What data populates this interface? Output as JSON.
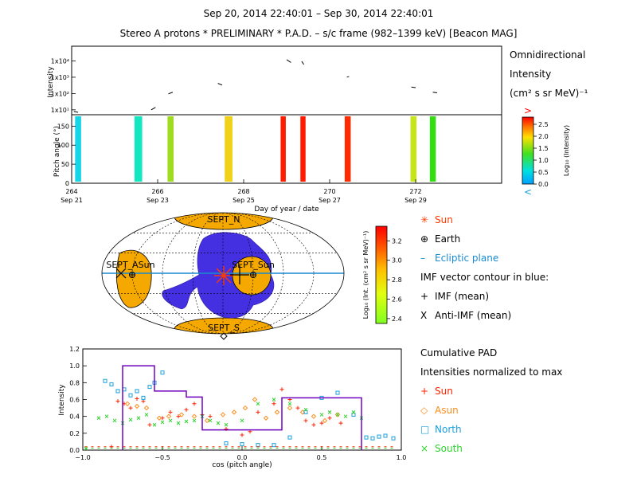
{
  "header": {
    "date_range": "Sep 20, 2014 22:40:01 – Sep 30, 2014 22:40:01",
    "subtitle": "Stereo A protons * PRELIMINARY * P.A.D. – s/c frame (982–1399 keV)  [Beacon MAG]"
  },
  "colors": {
    "orange": "#f5a800",
    "blue_contour": "#3a2bd8",
    "ecliptic": "#1a8ad0",
    "sun": "#ff3a00",
    "north": "#1aa0e0",
    "south": "#2fd32f",
    "cumulative": "#ff0000",
    "asun": "#ff8c1a",
    "outline": "#7000c0"
  },
  "intensity_panel": {
    "ylabel": "Intensity",
    "ytick_labels": [
      "1x10¹",
      "1x10²",
      "1x10³",
      "1x10⁴"
    ],
    "legend_lines": [
      "Omnidirectional",
      "Intensity",
      "(cm² s sr MeV)⁻¹"
    ],
    "segments": [
      {
        "x": [
          264.05,
          264.15
        ],
        "y": [
          8,
          7
        ]
      },
      {
        "x": [
          265.85,
          265.95
        ],
        "y": [
          10,
          14
        ]
      },
      {
        "x": [
          266.25,
          266.35
        ],
        "y": [
          95,
          120
        ]
      },
      {
        "x": [
          267.4,
          267.5
        ],
        "y": [
          420,
          330
        ]
      },
      {
        "x": [
          269.0,
          269.1
        ],
        "y": [
          12000,
          8000
        ]
      },
      {
        "x": [
          269.35,
          269.4
        ],
        "y": [
          9500,
          6000
        ]
      },
      {
        "x": [
          270.4,
          270.45
        ],
        "y": [
          1000,
          1100
        ]
      },
      {
        "x": [
          271.9,
          272.0
        ],
        "y": [
          250,
          230
        ]
      },
      {
        "x": [
          272.4,
          272.5
        ],
        "y": [
          120,
          110
        ]
      }
    ],
    "xlim": [
      264,
      274
    ],
    "ylim": [
      5,
      80000
    ],
    "log_y": true
  },
  "pitch_panel": {
    "ylabel": "Pitch angle (°)",
    "ytick_labels": [
      "0",
      "50",
      "100",
      "150"
    ],
    "xlabel": "Day of year / date",
    "xtick_days": [
      "264",
      "266",
      "268",
      "270",
      "272"
    ],
    "xtick_dates": [
      "Sep 21",
      "Sep 23",
      "Sep 25",
      "Sep 27",
      "Sep 29"
    ],
    "colorbar": {
      "label": "Log₁₀ (Intensity)",
      "tick_labels": [
        "0.0",
        "0.5",
        "1.0",
        "1.5",
        "2.0",
        "2.5"
      ],
      "over_mark": ">",
      "under_mark": "<",
      "range": [
        0.0,
        2.8
      ]
    },
    "bars": [
      {
        "day": 264.15,
        "width": 0.14,
        "color": "#14d6e6"
      },
      {
        "day": 265.55,
        "width": 0.18,
        "color": "#14e6c0"
      },
      {
        "day": 266.3,
        "width": 0.14,
        "color": "#9fdc20"
      },
      {
        "day": 267.65,
        "width": 0.18,
        "color": "#f0d21a"
      },
      {
        "day": 268.92,
        "width": 0.12,
        "color": "#ff1a00"
      },
      {
        "day": 269.38,
        "width": 0.12,
        "color": "#ff1a00"
      },
      {
        "day": 270.42,
        "width": 0.14,
        "color": "#ff2a00"
      },
      {
        "day": 271.95,
        "width": 0.14,
        "color": "#c7e61a"
      },
      {
        "day": 272.4,
        "width": 0.14,
        "color": "#33dd11"
      }
    ],
    "xlim": [
      264,
      274
    ],
    "ylim": [
      0,
      180
    ]
  },
  "sky_map": {
    "labels": {
      "north": "SEPT_N",
      "south": "SEPT_S",
      "asun": "SEPT_ASun",
      "sun": "SEPT_Sun"
    },
    "colorbar": {
      "label": "Log₁₀ (Int. (cm² s sr MeV)⁻¹)",
      "tick_labels": [
        "2.4",
        "2.6",
        "2.8",
        "3.0",
        "3.2"
      ],
      "range": [
        2.35,
        3.35
      ]
    },
    "legend": [
      {
        "symbol": "✳",
        "text": "Sun",
        "color": "#ff3a00"
      },
      {
        "symbol": "⊕",
        "text": "Earth",
        "color": "#000000"
      },
      {
        "symbol": "–",
        "text": "Ecliptic plane",
        "color": "#1a8ad0"
      },
      {
        "symbol": "",
        "text": "IMF vector contour in blue:",
        "color": "#000000"
      },
      {
        "symbol": "+",
        "text": "IMF (mean)",
        "color": "#000000"
      },
      {
        "symbol": "X",
        "text": "Anti-IMF (mean)",
        "color": "#000000"
      }
    ]
  },
  "chart_data": {
    "type": "scatter",
    "xlabel": "cos (pitch angle)",
    "ylabel": "Intensity",
    "xlim": [
      -1.0,
      1.0
    ],
    "ylim": [
      0.0,
      1.2
    ],
    "xtick_labels": [
      "−1.0",
      "−0.5",
      "0.0",
      "0.5",
      "1.0"
    ],
    "ytick_labels": [
      "0.0",
      "0.2",
      "0.4",
      "0.6",
      "0.8",
      "1.0",
      "1.2"
    ],
    "title": "Cumulative PAD",
    "subtitle": "Intensities normalized to max",
    "series": [
      {
        "name": "Sun",
        "marker": "+",
        "color": "#ff2200",
        "x": [
          -0.82,
          -0.78,
          -0.74,
          -0.7,
          -0.66,
          -0.62,
          -0.58,
          -0.5,
          -0.45,
          -0.4,
          -0.35,
          -0.3,
          -0.25,
          -0.2,
          -0.1,
          0.0,
          0.05,
          0.1,
          0.2,
          0.25,
          0.3,
          0.35,
          0.4,
          0.45,
          0.5,
          0.55,
          0.62
        ],
        "y": [
          0.04,
          0.58,
          0.55,
          0.5,
          0.61,
          0.58,
          0.3,
          0.38,
          0.45,
          0.4,
          0.48,
          0.55,
          0.42,
          0.4,
          0.25,
          0.18,
          0.22,
          0.45,
          0.55,
          0.72,
          0.6,
          0.5,
          0.35,
          0.3,
          0.32,
          0.38,
          0.32
        ]
      },
      {
        "name": "Asun",
        "marker": "◇",
        "color": "#ff8c1a",
        "x": [
          -0.72,
          -0.66,
          -0.6,
          -0.52,
          -0.46,
          -0.38,
          -0.3,
          -0.22,
          -0.12,
          -0.05,
          0.02,
          0.08,
          0.15,
          0.22,
          0.3,
          0.38,
          0.45,
          0.52,
          0.6
        ],
        "y": [
          0.55,
          0.52,
          0.5,
          0.38,
          0.4,
          0.42,
          0.4,
          0.35,
          0.42,
          0.45,
          0.5,
          0.6,
          0.38,
          0.45,
          0.5,
          0.45,
          0.4,
          0.35,
          0.42
        ]
      },
      {
        "name": "North",
        "marker": "□",
        "color": "#1aa0e0",
        "x": [
          -0.86,
          -0.82,
          -0.78,
          -0.74,
          -0.7,
          -0.66,
          -0.62,
          -0.58,
          -0.55,
          -0.5,
          -0.1,
          0.0,
          0.1,
          0.2,
          0.3,
          0.4,
          0.5,
          0.6,
          0.7,
          0.78,
          0.82,
          0.86,
          0.9,
          0.95
        ],
        "y": [
          0.82,
          0.78,
          0.7,
          0.72,
          0.65,
          0.7,
          0.62,
          0.75,
          0.8,
          0.92,
          0.08,
          0.07,
          0.06,
          0.06,
          0.15,
          0.45,
          0.62,
          0.68,
          0.42,
          0.15,
          0.14,
          0.16,
          0.17,
          0.14
        ]
      },
      {
        "name": "South",
        "marker": "×",
        "color": "#2fd32f",
        "x": [
          -0.98,
          -0.9,
          -0.85,
          -0.8,
          -0.75,
          -0.7,
          -0.65,
          -0.6,
          -0.55,
          -0.5,
          -0.45,
          -0.4,
          -0.35,
          -0.3,
          -0.25,
          -0.2,
          -0.15,
          -0.1,
          0.0,
          0.1,
          0.2,
          0.3,
          0.4,
          0.5,
          0.55,
          0.6,
          0.65,
          0.7,
          0.75
        ],
        "y": [
          0.02,
          0.38,
          0.4,
          0.35,
          0.32,
          0.36,
          0.38,
          0.42,
          0.3,
          0.33,
          0.35,
          0.32,
          0.34,
          0.35,
          0.4,
          0.35,
          0.32,
          0.3,
          0.35,
          0.55,
          0.6,
          0.55,
          0.48,
          0.42,
          0.45,
          0.42,
          0.4,
          0.45,
          0.38
        ]
      },
      {
        "name": "Cumulative",
        "marker": "line",
        "color": "#7000c0",
        "x": [
          -0.75,
          -0.75,
          -0.55,
          -0.55,
          -0.35,
          -0.35,
          -0.25,
          -0.25,
          0.25,
          0.25,
          0.75,
          0.75
        ],
        "y": [
          0.0,
          1.0,
          1.0,
          0.7,
          0.7,
          0.63,
          0.63,
          0.24,
          0.24,
          0.62,
          0.62,
          0.0
        ]
      }
    ]
  },
  "pad_legend": {
    "lines": [
      "Cumulative PAD",
      "Intensities normalized to max"
    ],
    "items": [
      {
        "symbol": "+",
        "text": "Sun",
        "color": "#ff2200"
      },
      {
        "symbol": "◇",
        "text": "Asun",
        "color": "#ff8c1a"
      },
      {
        "symbol": "□",
        "text": "North",
        "color": "#1aa0e0"
      },
      {
        "symbol": "×",
        "text": "South",
        "color": "#2fd32f"
      }
    ]
  }
}
